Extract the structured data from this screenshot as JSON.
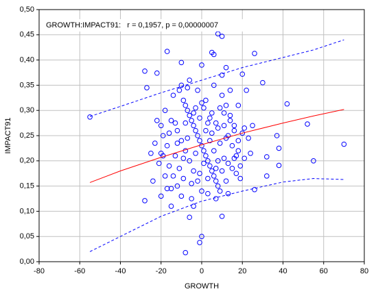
{
  "chart_data": {
    "type": "scatter",
    "annotation": "GROWTH:IMPACT91:   r = 0,1957, p = 0,00000007",
    "xlabel": "GROWTH",
    "ylabel": "IMPACT91",
    "color": "#0000ff",
    "grid": true,
    "xlim": [
      -80,
      80
    ],
    "xticks": [
      -80,
      -60,
      -40,
      -20,
      0,
      20,
      40,
      60,
      80
    ],
    "ylim": [
      0,
      0.5
    ],
    "yticks": [
      {
        "value": 0,
        "label": "0,00"
      },
      {
        "value": 0.05,
        "label": "0,05"
      },
      {
        "value": 0.1,
        "label": "0,10"
      },
      {
        "value": 0.15,
        "label": "0,15"
      },
      {
        "value": 0.2,
        "label": "0,20"
      },
      {
        "value": 0.25,
        "label": "0,25"
      },
      {
        "value": 0.3,
        "label": "0,30"
      },
      {
        "value": 0.35,
        "label": "0,35"
      },
      {
        "value": 0.4,
        "label": "0,40"
      },
      {
        "value": 0.45,
        "label": "0,45"
      },
      {
        "value": 0.5,
        "label": "0,50"
      }
    ],
    "x": [
      -55,
      -28,
      -27,
      -22,
      -17,
      -10,
      5,
      6,
      8,
      10,
      26,
      20,
      30,
      22,
      42,
      52,
      70,
      55,
      38,
      32,
      26,
      -28,
      -8,
      0,
      -1,
      10,
      -6,
      -15,
      -20,
      -24,
      -25,
      -20,
      32,
      24,
      38,
      37,
      -18,
      -15,
      -12,
      -10,
      -8,
      -6,
      -4,
      -2,
      0,
      2,
      4,
      6,
      8,
      10,
      12,
      14,
      16,
      18,
      -16,
      -14,
      -12,
      -10,
      -8,
      -6,
      -4,
      -2,
      0,
      2,
      4,
      6,
      8,
      10,
      12,
      14,
      16,
      18,
      -19,
      -17,
      -13,
      -11,
      -9,
      -7,
      -5,
      -3,
      -1,
      1,
      3,
      5,
      7,
      9,
      11,
      13,
      15,
      17,
      19,
      -18,
      -14,
      -10,
      -6,
      -2,
      2,
      6,
      10,
      14,
      -20,
      -16,
      -12,
      -8,
      -4,
      0,
      4,
      8,
      12,
      16,
      20,
      -15,
      -11,
      -7,
      -3,
      1,
      5,
      9,
      13,
      17,
      -21,
      -5,
      3,
      7,
      11,
      15,
      -13,
      -9,
      -1,
      1,
      3,
      5,
      7,
      9,
      11,
      -3,
      -17,
      -9,
      -5,
      -1,
      3,
      7,
      13,
      19,
      21,
      23,
      -23,
      -22,
      25,
      -7,
      0,
      12,
      18,
      -19,
      21,
      -4
    ],
    "values": [
      0.287,
      0.378,
      0.345,
      0.374,
      0.417,
      0.395,
      0.415,
      0.411,
      0.452,
      0.447,
      0.413,
      0.372,
      0.355,
      0.34,
      0.313,
      0.273,
      0.233,
      0.2,
      0.191,
      0.17,
      0.143,
      0.121,
      0.018,
      0.05,
      0.038,
      0.09,
      0.088,
      0.11,
      0.13,
      0.16,
      0.215,
      0.215,
      0.208,
      0.215,
      0.225,
      0.25,
      0.3,
      0.28,
      0.26,
      0.24,
      0.22,
      0.2,
      0.18,
      0.16,
      0.14,
      0.26,
      0.24,
      0.22,
      0.2,
      0.18,
      0.16,
      0.28,
      0.26,
      0.24,
      0.19,
      0.17,
      0.15,
      0.13,
      0.31,
      0.29,
      0.27,
      0.25,
      0.23,
      0.21,
      0.19,
      0.17,
      0.15,
      0.33,
      0.31,
      0.29,
      0.27,
      0.22,
      0.25,
      0.23,
      0.21,
      0.34,
      0.32,
      0.3,
      0.28,
      0.26,
      0.24,
      0.22,
      0.2,
      0.18,
      0.16,
      0.14,
      0.27,
      0.25,
      0.23,
      0.21,
      0.19,
      0.17,
      0.33,
      0.35,
      0.36,
      0.34,
      0.32,
      0.35,
      0.37,
      0.34,
      0.27,
      0.255,
      0.235,
      0.275,
      0.295,
      0.315,
      0.285,
      0.265,
      0.245,
      0.205,
      0.255,
      0.145,
      0.185,
      0.245,
      0.215,
      0.195,
      0.255,
      0.235,
      0.195,
      0.175,
      0.195,
      0.125,
      0.135,
      0.125,
      0.205,
      0.185,
      0.275,
      0.205,
      0.285,
      0.305,
      0.275,
      0.295,
      0.275,
      0.305,
      0.295,
      0.305,
      0.145,
      0.165,
      0.155,
      0.175,
      0.165,
      0.185,
      0.135,
      0.165,
      0.265,
      0.245,
      0.235,
      0.28,
      0.27,
      0.345,
      0.39,
      0.385,
      0.31,
      0.21,
      0.205,
      0.11
    ],
    "lines": [
      {
        "color": "#ff0000",
        "style": "solid",
        "x": [
          -55,
          -40,
          -20,
          0,
          20,
          40,
          55,
          70
        ],
        "values": [
          0.157,
          0.18,
          0.207,
          0.232,
          0.255,
          0.275,
          0.289,
          0.302
        ]
      },
      {
        "color": "#0000ff",
        "style": "dashed",
        "x": [
          -55,
          -40,
          -20,
          0,
          20,
          40,
          55,
          70
        ],
        "values": [
          0.288,
          0.308,
          0.335,
          0.36,
          0.385,
          0.405,
          0.42,
          0.44
        ]
      },
      {
        "color": "#0000ff",
        "style": "dashed",
        "x": [
          -55,
          -40,
          -20,
          0,
          20,
          40,
          55,
          70
        ],
        "values": [
          0.02,
          0.05,
          0.09,
          0.12,
          0.14,
          0.158,
          0.165,
          0.163
        ]
      }
    ]
  }
}
